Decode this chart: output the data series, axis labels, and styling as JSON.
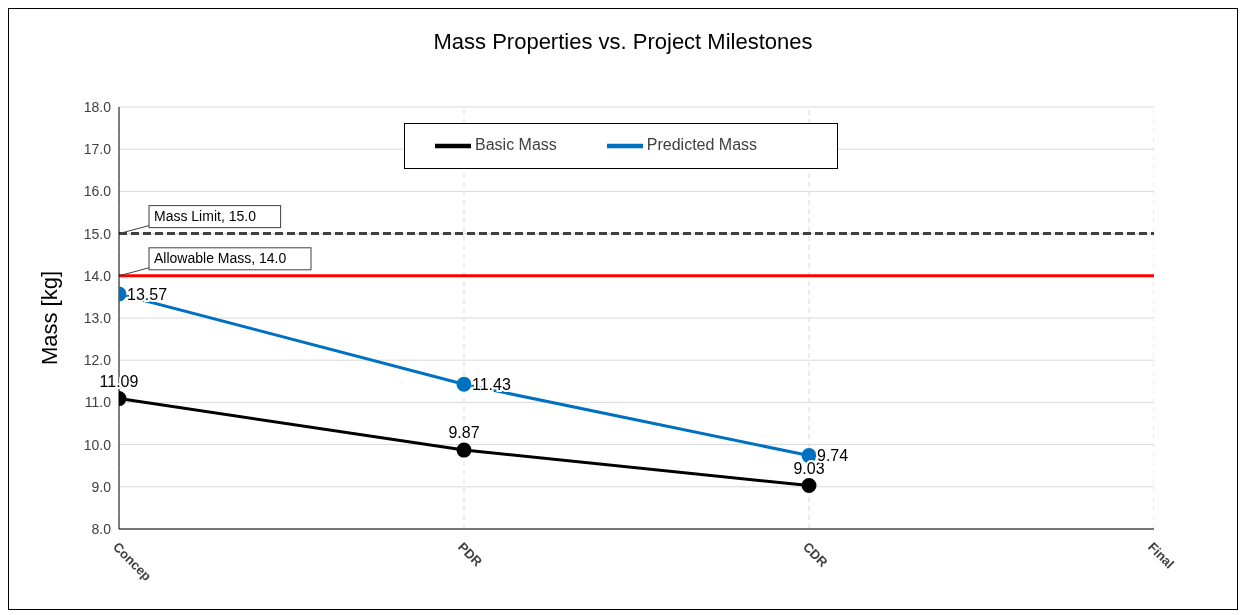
{
  "chart_data": {
    "type": "line",
    "title": "Mass Properties vs. Project Milestones",
    "ylabel": "Mass [kg]",
    "categories": [
      "Concep",
      "PDR",
      "CDR",
      "Final"
    ],
    "series": [
      {
        "name": "Basic Mass",
        "color": "#000000",
        "values": [
          11.09,
          9.87,
          9.03,
          null
        ]
      },
      {
        "name": "Predicted Mass",
        "color": "#0070c0",
        "values": [
          13.57,
          11.43,
          9.74,
          null
        ]
      }
    ],
    "ylim": [
      8,
      18
    ],
    "yticks": [
      {
        "value": 8,
        "label": "8.0"
      },
      {
        "value": 9,
        "label": "9.0"
      },
      {
        "value": 10,
        "label": "10.0"
      },
      {
        "value": 11,
        "label": "11.0"
      },
      {
        "value": 12,
        "label": "12.0"
      },
      {
        "value": 13,
        "label": "13.0"
      },
      {
        "value": 14,
        "label": "14.0"
      },
      {
        "value": 15,
        "label": "15.0"
      },
      {
        "value": 16,
        "label": "16.0"
      },
      {
        "value": 17,
        "label": "17.0"
      },
      {
        "value": 18,
        "label": "18.0"
      }
    ],
    "ref_lines": [
      {
        "axis": "y",
        "value": 15,
        "label": "Mass Limit, 15.0",
        "color": "#404040",
        "line_style": "dashed"
      },
      {
        "axis": "y",
        "value": 14,
        "label": "Allowable Mass, 14.0",
        "color": "#ff0000",
        "line_style": "solid"
      }
    ],
    "grid": true,
    "legend": "top",
    "marker": "circle",
    "line_style": "solid",
    "data_labels": true
  }
}
